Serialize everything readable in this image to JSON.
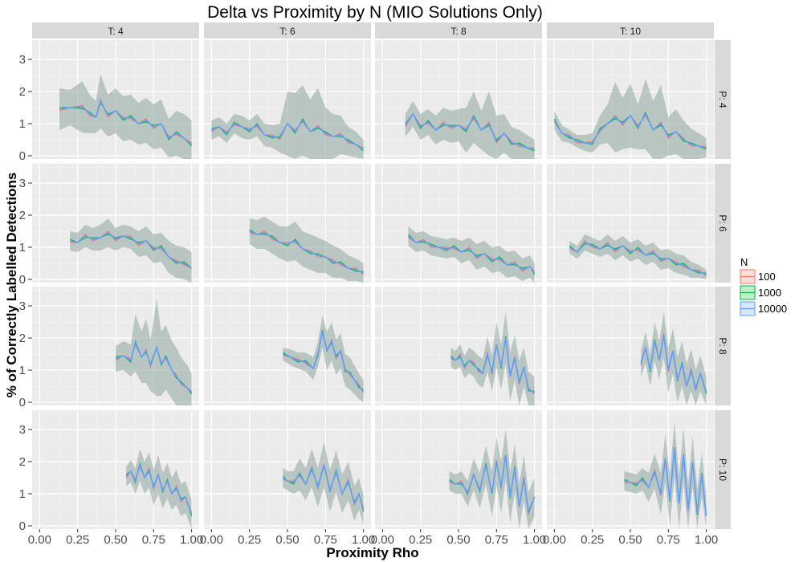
{
  "chart_data": {
    "type": "line",
    "title": "Delta vs Proximity by N (MIO Solutions Only)",
    "xlabel": "Proximity Rho",
    "ylabel": "% of Correctly Labelled Detections",
    "xlim": [
      0,
      1
    ],
    "ylim": [
      -0.1,
      3.6
    ],
    "x_ticks": [
      "0.00",
      "0.25",
      "0.50",
      "0.75",
      "1.00"
    ],
    "y_ticks": [
      "0",
      "1",
      "2",
      "3"
    ],
    "grid": true,
    "legend": {
      "title": "N",
      "placement": "right",
      "entries": [
        {
          "name": "100",
          "color": "#F8766D"
        },
        {
          "name": "1000",
          "color": "#00BA38"
        },
        {
          "name": "10000",
          "color": "#619CFF"
        }
      ]
    },
    "facets": {
      "columns": [
        "T: 4",
        "T: 6",
        "T: 8",
        "T: 10"
      ],
      "rows": [
        "P: 4",
        "P: 6",
        "P: 8",
        "P: 10"
      ]
    },
    "panels": [
      {
        "col": "T: 4",
        "row": "P: 4",
        "x": [
          0.13,
          0.2,
          0.28,
          0.33,
          0.37,
          0.4,
          0.45,
          0.5,
          0.55,
          0.6,
          0.65,
          0.7,
          0.75,
          0.8,
          0.85,
          0.9,
          0.95,
          1.0
        ],
        "y": [
          1.45,
          1.5,
          1.52,
          1.3,
          1.2,
          1.7,
          1.25,
          1.4,
          1.15,
          1.2,
          1.0,
          1.1,
          0.9,
          1.0,
          0.55,
          0.7,
          0.55,
          0.35
        ],
        "band": [
          0.65,
          0.55,
          0.8,
          0.6,
          0.5,
          0.85,
          0.65,
          0.7,
          0.7,
          0.7,
          0.65,
          0.7,
          0.7,
          0.75,
          0.6,
          0.7,
          0.75,
          0.75
        ]
      },
      {
        "col": "T: 6",
        "row": "P: 4",
        "x": [
          0.0,
          0.05,
          0.1,
          0.15,
          0.2,
          0.25,
          0.3,
          0.35,
          0.4,
          0.45,
          0.5,
          0.55,
          0.6,
          0.65,
          0.7,
          0.75,
          0.8,
          0.85,
          0.9,
          0.95,
          1.0
        ],
        "y": [
          0.8,
          0.9,
          0.7,
          1.0,
          0.9,
          0.8,
          0.95,
          0.65,
          0.6,
          0.55,
          1.0,
          0.75,
          1.1,
          0.75,
          0.9,
          0.7,
          0.6,
          0.65,
          0.45,
          0.35,
          0.2
        ],
        "band": [
          0.3,
          0.3,
          0.3,
          0.3,
          0.35,
          0.3,
          0.35,
          0.35,
          0.35,
          0.45,
          1.0,
          1.2,
          1.1,
          1.0,
          1.2,
          0.8,
          0.7,
          0.6,
          0.45,
          0.4,
          0.3
        ]
      },
      {
        "col": "T: 8",
        "row": "P: 4",
        "x": [
          0.15,
          0.2,
          0.25,
          0.3,
          0.35,
          0.4,
          0.45,
          0.5,
          0.55,
          0.6,
          0.65,
          0.7,
          0.75,
          0.8,
          0.85,
          0.9,
          0.95,
          1.0
        ],
        "y": [
          0.95,
          1.3,
          0.9,
          1.05,
          0.8,
          1.0,
          0.9,
          0.95,
          0.8,
          1.2,
          0.8,
          1.0,
          0.45,
          0.7,
          0.4,
          0.35,
          0.25,
          0.2
        ],
        "band": [
          0.35,
          0.4,
          0.4,
          0.4,
          0.45,
          0.5,
          0.5,
          0.5,
          0.7,
          0.8,
          0.6,
          1.0,
          0.8,
          0.6,
          0.5,
          0.45,
          0.4,
          0.3
        ]
      },
      {
        "col": "T: 10",
        "row": "P: 4",
        "x": [
          0.0,
          0.05,
          0.1,
          0.15,
          0.2,
          0.25,
          0.3,
          0.35,
          0.4,
          0.45,
          0.5,
          0.55,
          0.6,
          0.65,
          0.7,
          0.75,
          0.8,
          0.85,
          0.9,
          0.95,
          1.0
        ],
        "y": [
          1.1,
          0.7,
          0.6,
          0.45,
          0.4,
          0.4,
          0.8,
          1.0,
          1.2,
          1.0,
          1.25,
          0.9,
          1.3,
          0.8,
          1.0,
          0.6,
          0.75,
          0.5,
          0.35,
          0.3,
          0.25
        ],
        "band": [
          0.3,
          0.25,
          0.2,
          0.2,
          0.25,
          0.3,
          0.45,
          0.6,
          1.1,
          0.8,
          1.0,
          0.7,
          1.1,
          0.9,
          1.2,
          0.6,
          0.7,
          0.6,
          0.5,
          0.4,
          0.3
        ]
      },
      {
        "col": "T: 4",
        "row": "P: 6",
        "x": [
          0.2,
          0.25,
          0.3,
          0.35,
          0.4,
          0.45,
          0.5,
          0.55,
          0.6,
          0.65,
          0.7,
          0.75,
          0.8,
          0.85,
          0.9,
          0.95,
          1.0
        ],
        "y": [
          1.2,
          1.15,
          1.35,
          1.25,
          1.3,
          1.45,
          1.25,
          1.35,
          1.3,
          1.1,
          1.2,
          0.95,
          1.0,
          0.7,
          0.55,
          0.5,
          0.35
        ],
        "band": [
          0.3,
          0.3,
          0.35,
          0.35,
          0.4,
          0.45,
          0.35,
          0.35,
          0.35,
          0.4,
          0.45,
          0.45,
          0.45,
          0.5,
          0.5,
          0.5,
          0.5
        ]
      },
      {
        "col": "T: 6",
        "row": "P: 6",
        "x": [
          0.25,
          0.3,
          0.35,
          0.4,
          0.45,
          0.5,
          0.55,
          0.6,
          0.65,
          0.7,
          0.75,
          0.8,
          0.85,
          0.9,
          0.95,
          1.0
        ],
        "y": [
          1.5,
          1.4,
          1.45,
          1.3,
          1.15,
          1.1,
          1.2,
          0.95,
          0.85,
          0.75,
          0.7,
          0.55,
          0.5,
          0.35,
          0.3,
          0.2
        ],
        "band": [
          0.4,
          0.45,
          0.5,
          0.5,
          0.5,
          0.55,
          0.6,
          0.55,
          0.55,
          0.55,
          0.5,
          0.5,
          0.45,
          0.4,
          0.35,
          0.3
        ]
      },
      {
        "col": "T: 8",
        "row": "P: 6",
        "x": [
          0.17,
          0.22,
          0.27,
          0.32,
          0.37,
          0.42,
          0.47,
          0.52,
          0.57,
          0.62,
          0.67,
          0.72,
          0.77,
          0.82,
          0.87,
          0.92,
          0.97,
          1.0
        ],
        "y": [
          1.35,
          1.15,
          1.2,
          1.05,
          1.0,
          0.95,
          1.0,
          0.85,
          0.95,
          0.7,
          0.8,
          0.6,
          0.65,
          0.45,
          0.5,
          0.3,
          0.4,
          0.2
        ],
        "band": [
          0.3,
          0.3,
          0.3,
          0.3,
          0.3,
          0.3,
          0.3,
          0.35,
          0.35,
          0.4,
          0.4,
          0.4,
          0.4,
          0.4,
          0.4,
          0.35,
          0.35,
          0.3
        ]
      },
      {
        "col": "T: 10",
        "row": "P: 6",
        "x": [
          0.1,
          0.15,
          0.2,
          0.25,
          0.3,
          0.35,
          0.4,
          0.45,
          0.5,
          0.55,
          0.6,
          0.65,
          0.7,
          0.75,
          0.8,
          0.85,
          0.9,
          0.95,
          1.0
        ],
        "y": [
          1.0,
          0.85,
          1.15,
          1.05,
          0.95,
          1.1,
          0.9,
          1.05,
          0.85,
          0.95,
          0.75,
          0.85,
          0.6,
          0.65,
          0.5,
          0.45,
          0.3,
          0.25,
          0.15
        ],
        "band": [
          0.2,
          0.2,
          0.25,
          0.25,
          0.25,
          0.3,
          0.3,
          0.3,
          0.3,
          0.3,
          0.3,
          0.3,
          0.3,
          0.3,
          0.3,
          0.3,
          0.25,
          0.2,
          0.15
        ]
      },
      {
        "col": "T: 4",
        "row": "P: 8",
        "x": [
          0.5,
          0.55,
          0.6,
          0.63,
          0.67,
          0.7,
          0.73,
          0.77,
          0.8,
          0.83,
          0.87,
          0.9,
          0.93,
          0.97,
          1.0
        ],
        "y": [
          1.35,
          1.45,
          1.3,
          1.85,
          1.4,
          1.6,
          1.15,
          1.7,
          1.2,
          1.4,
          1.0,
          0.8,
          0.6,
          0.45,
          0.3
        ],
        "band": [
          0.4,
          0.45,
          0.5,
          0.9,
          0.8,
          1.0,
          0.8,
          1.5,
          1.0,
          1.0,
          0.9,
          0.9,
          0.8,
          0.7,
          0.6
        ]
      },
      {
        "col": "T: 6",
        "row": "P: 8",
        "x": [
          0.47,
          0.52,
          0.57,
          0.62,
          0.67,
          0.7,
          0.73,
          0.76,
          0.79,
          0.82,
          0.85,
          0.88,
          0.91,
          0.94,
          0.97,
          1.0
        ],
        "y": [
          1.5,
          1.4,
          1.3,
          1.25,
          1.05,
          1.5,
          2.2,
          1.6,
          1.9,
          1.4,
          1.6,
          1.0,
          0.9,
          0.7,
          0.5,
          0.35
        ],
        "band": [
          0.2,
          0.25,
          0.25,
          0.3,
          0.35,
          0.4,
          0.5,
          0.6,
          0.6,
          0.55,
          0.55,
          0.5,
          0.5,
          0.45,
          0.4,
          0.35
        ]
      },
      {
        "col": "T: 8",
        "row": "P: 8",
        "x": [
          0.45,
          0.48,
          0.51,
          0.54,
          0.57,
          0.6,
          0.63,
          0.66,
          0.69,
          0.72,
          0.75,
          0.78,
          0.81,
          0.84,
          0.87,
          0.9,
          0.93,
          0.96,
          1.0
        ],
        "y": [
          1.4,
          1.3,
          1.45,
          1.1,
          1.3,
          1.2,
          1.0,
          0.9,
          1.5,
          0.9,
          1.8,
          1.1,
          2.0,
          0.8,
          1.4,
          0.6,
          1.1,
          0.4,
          0.3
        ],
        "band": [
          0.3,
          0.3,
          0.35,
          0.35,
          0.4,
          0.4,
          0.45,
          0.45,
          0.55,
          0.55,
          0.7,
          0.7,
          0.8,
          0.75,
          0.7,
          0.7,
          0.6,
          0.55,
          0.5
        ]
      },
      {
        "col": "T: 10",
        "row": "P: 8",
        "x": [
          0.57,
          0.6,
          0.63,
          0.66,
          0.69,
          0.72,
          0.75,
          0.78,
          0.81,
          0.84,
          0.87,
          0.9,
          0.93,
          0.96,
          1.0
        ],
        "y": [
          1.2,
          1.7,
          1.0,
          1.9,
          1.3,
          2.1,
          1.0,
          1.6,
          0.7,
          1.2,
          0.5,
          1.0,
          0.4,
          0.9,
          0.3
        ],
        "band": [
          0.4,
          0.5,
          0.5,
          0.6,
          0.6,
          0.7,
          0.7,
          0.7,
          0.7,
          0.7,
          0.7,
          0.65,
          0.6,
          0.55,
          0.5
        ]
      },
      {
        "col": "T: 4",
        "row": "P: 10",
        "x": [
          0.57,
          0.6,
          0.63,
          0.66,
          0.69,
          0.72,
          0.75,
          0.78,
          0.81,
          0.84,
          0.87,
          0.9,
          0.93,
          0.96,
          1.0
        ],
        "y": [
          1.55,
          1.7,
          1.4,
          1.9,
          1.5,
          1.75,
          1.2,
          1.6,
          1.1,
          1.4,
          1.0,
          1.2,
          0.8,
          0.9,
          0.35
        ],
        "band": [
          0.3,
          0.35,
          0.4,
          0.5,
          0.5,
          0.55,
          0.55,
          0.6,
          0.55,
          0.55,
          0.5,
          0.55,
          0.5,
          0.5,
          0.45
        ]
      },
      {
        "col": "T: 6",
        "row": "P: 10",
        "x": [
          0.47,
          0.5,
          0.54,
          0.58,
          0.62,
          0.66,
          0.7,
          0.74,
          0.78,
          0.82,
          0.86,
          0.9,
          0.94,
          0.97,
          1.0
        ],
        "y": [
          1.5,
          1.4,
          1.35,
          1.6,
          1.3,
          1.8,
          1.2,
          1.9,
          1.1,
          1.7,
          1.0,
          1.4,
          0.7,
          1.0,
          0.5
        ],
        "band": [
          0.3,
          0.3,
          0.35,
          0.5,
          0.5,
          0.6,
          0.6,
          0.7,
          0.65,
          0.65,
          0.6,
          0.6,
          0.55,
          0.5,
          0.45
        ]
      },
      {
        "col": "T: 8",
        "row": "P: 10",
        "x": [
          0.44,
          0.48,
          0.52,
          0.56,
          0.6,
          0.64,
          0.68,
          0.72,
          0.75,
          0.78,
          0.81,
          0.84,
          0.87,
          0.9,
          0.93,
          0.96,
          1.0
        ],
        "y": [
          1.4,
          1.3,
          1.35,
          1.0,
          1.6,
          1.1,
          1.9,
          1.0,
          2.0,
          1.2,
          2.2,
          0.9,
          1.8,
          0.6,
          1.5,
          0.4,
          0.9
        ],
        "band": [
          0.3,
          0.3,
          0.35,
          0.4,
          0.5,
          0.55,
          0.6,
          0.7,
          0.75,
          0.8,
          0.8,
          0.8,
          0.75,
          0.7,
          0.7,
          0.65,
          0.6
        ]
      },
      {
        "col": "T: 10",
        "row": "P: 10",
        "x": [
          0.46,
          0.5,
          0.54,
          0.58,
          0.62,
          0.66,
          0.7,
          0.73,
          0.76,
          0.79,
          0.82,
          0.85,
          0.88,
          0.91,
          0.94,
          0.97,
          1.0
        ],
        "y": [
          1.4,
          1.35,
          1.3,
          1.45,
          1.2,
          1.7,
          1.0,
          2.1,
          0.8,
          2.4,
          0.7,
          2.2,
          0.5,
          2.0,
          0.4,
          1.6,
          0.3
        ],
        "band": [
          0.3,
          0.3,
          0.3,
          0.35,
          0.45,
          0.55,
          0.65,
          0.75,
          0.8,
          0.85,
          0.85,
          0.85,
          0.8,
          0.8,
          0.75,
          0.7,
          0.6
        ]
      }
    ]
  }
}
